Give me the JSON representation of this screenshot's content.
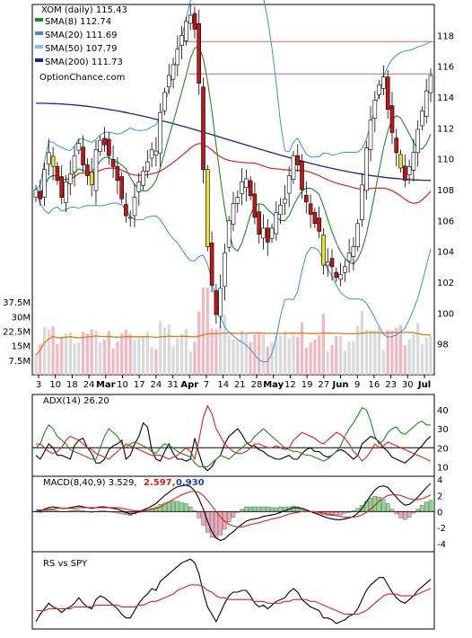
{
  "chart_data": [
    {
      "type": "candlestick",
      "symbol": "XOM",
      "title": "XOM (daily) 115.43",
      "source": "OptionChance.com",
      "ylim": [
        96,
        120
      ],
      "y_ticks": [
        98,
        100,
        102,
        104,
        106,
        108,
        110,
        112,
        114,
        116,
        118
      ],
      "x_ticks": [
        "3",
        "10",
        "18",
        "24",
        "Mar",
        "10",
        "17",
        "24",
        "31",
        "Apr",
        "7",
        "14",
        "21",
        "28",
        "May",
        "12",
        "19",
        "27",
        "Jun",
        "9",
        "16",
        "23",
        "30",
        "Jul"
      ],
      "legend": [
        {
          "label": "SMA(8) 112.74",
          "color": "#208a20"
        },
        {
          "label": "SMA(20) 111.69",
          "color": "#3a8fd8"
        },
        {
          "label": "SMA(50) 107.79",
          "color": "#7ec3f0"
        },
        {
          "label": "SMA(200) 111.73",
          "color": "#1a20a8"
        }
      ],
      "resistance_lines": [
        117.6,
        115.5
      ],
      "close": [
        108.0,
        107.4,
        109.3,
        110.4,
        109.5,
        108.6,
        107.5,
        108.5,
        109.0,
        110.2,
        111.0,
        109.6,
        108.9,
        108.3,
        110.6,
        111.2,
        110.9,
        110.2,
        109.5,
        108.6,
        107.4,
        106.3,
        106.2,
        107.5,
        108.5,
        109.2,
        109.8,
        110.6,
        110.5,
        113.0,
        114.3,
        115.4,
        116.1,
        117.1,
        118.0,
        118.9,
        119.3,
        118.4,
        114.9,
        109.3,
        104.3,
        101.8,
        99.9,
        101.6,
        103.9,
        106.0,
        107.1,
        107.5,
        108.5,
        108.7,
        107.6,
        106.2,
        105.1,
        105.5,
        104.6,
        105.5,
        106.5,
        107.0,
        107.4,
        108.9,
        110.2,
        109.6,
        108.0,
        107.2,
        106.4,
        105.8,
        105.3,
        103.1,
        103.3,
        103.0,
        102.3,
        102.5,
        103.0,
        103.9,
        104.3,
        105.8,
        108.3,
        110.7,
        112.5,
        113.8,
        114.8,
        115.3,
        113.2,
        111.7,
        110.4,
        109.4,
        108.6,
        109.5,
        110.4,
        111.9,
        113.1,
        114.4,
        115.4
      ],
      "volume_scale_M": [
        0,
        45
      ],
      "volume_ticks_M": [
        "37.5M",
        "30M",
        "22.5M",
        "15M",
        "7.5M"
      ]
    },
    {
      "type": "line",
      "title": "ADX(14) 26.20",
      "ylim": [
        5,
        48
      ],
      "y_ticks": [
        10,
        20,
        30,
        40
      ],
      "reference_line": 20,
      "series": [
        {
          "color": "#000000",
          "values": [
            16,
            14,
            18,
            22,
            20,
            16,
            16,
            15,
            14,
            21,
            24,
            25,
            20,
            17,
            12,
            12,
            14,
            19,
            21,
            22,
            24,
            14,
            16,
            22,
            26,
            33,
            31,
            19,
            14,
            13,
            18,
            22,
            17,
            14,
            14,
            13,
            14,
            25,
            17,
            10,
            8,
            10,
            14,
            16,
            22,
            26,
            28,
            30,
            27,
            23,
            21,
            21,
            19,
            18,
            16,
            15,
            14,
            14,
            15,
            16,
            14,
            14,
            17,
            19,
            20,
            18,
            18,
            16,
            15,
            16,
            18,
            19,
            18,
            16,
            14,
            16,
            22,
            24,
            26,
            25,
            23,
            20,
            18,
            15,
            14,
            13,
            12,
            14,
            16,
            19,
            21,
            24,
            26
          ]
        },
        {
          "color": "#208a20",
          "values": [
            20,
            22,
            28,
            32,
            30,
            26,
            24,
            22,
            19,
            18,
            17,
            16,
            15,
            14,
            14,
            20,
            26,
            30,
            28,
            26,
            22,
            20,
            22,
            23,
            22,
            21,
            20,
            18,
            17,
            20,
            22,
            21,
            20,
            18,
            17,
            16,
            15,
            12,
            10,
            10,
            10,
            12,
            14,
            16,
            15,
            14,
            16,
            18,
            20,
            22,
            23,
            26,
            28,
            30,
            28,
            26,
            24,
            22,
            20,
            19,
            18,
            18,
            17,
            16,
            16,
            15,
            14,
            13,
            14,
            16,
            18,
            21,
            26,
            30,
            33,
            37,
            41,
            40,
            34,
            26,
            22,
            24,
            28,
            30,
            31,
            28,
            27,
            29,
            31,
            33,
            34,
            32,
            32
          ]
        },
        {
          "color": "#dd2020",
          "values": [
            22,
            22,
            20,
            18,
            17,
            18,
            20,
            24,
            26,
            25,
            24,
            22,
            20,
            19,
            17,
            16,
            15,
            14,
            16,
            18,
            20,
            22,
            21,
            20,
            19,
            18,
            17,
            16,
            16,
            16,
            15,
            14,
            15,
            16,
            18,
            20,
            18,
            14,
            24,
            36,
            42,
            38,
            30,
            26,
            22,
            20,
            18,
            17,
            17,
            18,
            20,
            22,
            22,
            21,
            20,
            20,
            21,
            20,
            19,
            20,
            24,
            26,
            28,
            27,
            26,
            25,
            23,
            22,
            24,
            26,
            28,
            27,
            25,
            22,
            18,
            16,
            13,
            15,
            18,
            22,
            20,
            21,
            23,
            22,
            21,
            20,
            19,
            18,
            17,
            16,
            15,
            14,
            13
          ]
        }
      ]
    },
    {
      "type": "bar+line",
      "title": "MACD(8,40,9) 3.529,",
      "macd_value": "2.597,",
      "signal_value": "0.930",
      "ylim": [
        -5,
        4.4
      ],
      "y_ticks": [
        -4,
        -2,
        0,
        2,
        4
      ],
      "series": [
        {
          "color": "#000000",
          "values": [
            0.2,
            0.1,
            0.3,
            0.5,
            0.6,
            0.5,
            0.4,
            0.4,
            0.5,
            0.6,
            0.7,
            0.6,
            0.5,
            0.4,
            0.5,
            0.6,
            0.6,
            0.5,
            0.4,
            0.3,
            0.1,
            -0.1,
            -0.3,
            -0.2,
            0.0,
            0.2,
            0.4,
            0.7,
            1.0,
            1.5,
            2.0,
            2.4,
            2.8,
            3.1,
            3.2,
            3.3,
            3.1,
            2.6,
            1.6,
            0.3,
            -1.2,
            -2.5,
            -3.3,
            -3.6,
            -3.4,
            -2.9,
            -2.5,
            -2.0,
            -1.6,
            -1.2,
            -1.0,
            -0.9,
            -0.8,
            -0.6,
            -0.5,
            -0.4,
            -0.3,
            -0.1,
            0.1,
            0.3,
            0.5,
            0.5,
            0.4,
            0.2,
            0.0,
            -0.2,
            -0.4,
            -0.6,
            -0.8,
            -0.9,
            -1.0,
            -1.0,
            -0.9,
            -0.8,
            -0.6,
            -0.2,
            0.4,
            1.2,
            2.0,
            2.7,
            3.1,
            3.2,
            3.0,
            2.4,
            1.8,
            1.2,
            0.8,
            0.9,
            1.3,
            1.8,
            2.4,
            3.0,
            3.5
          ]
        },
        {
          "color": "#dd2020",
          "values": [
            0.2,
            0.2,
            0.2,
            0.3,
            0.3,
            0.4,
            0.4,
            0.4,
            0.4,
            0.4,
            0.5,
            0.5,
            0.5,
            0.5,
            0.5,
            0.5,
            0.5,
            0.5,
            0.5,
            0.5,
            0.4,
            0.3,
            0.2,
            0.1,
            0.1,
            0.1,
            0.2,
            0.3,
            0.4,
            0.6,
            0.9,
            1.2,
            1.5,
            1.8,
            2.1,
            2.3,
            2.5,
            2.5,
            2.4,
            2.0,
            1.4,
            0.7,
            0.0,
            -0.7,
            -1.2,
            -1.6,
            -1.8,
            -1.9,
            -1.9,
            -1.8,
            -1.6,
            -1.5,
            -1.4,
            -1.2,
            -1.1,
            -0.9,
            -0.8,
            -0.7,
            -0.5,
            -0.3,
            -0.2,
            -0.1,
            0.0,
            0.0,
            0.0,
            0.0,
            -0.1,
            -0.2,
            -0.3,
            -0.4,
            -0.5,
            -0.6,
            -0.7,
            -0.7,
            -0.7,
            -0.6,
            -0.4,
            -0.1,
            0.3,
            0.8,
            1.3,
            1.7,
            2.0,
            2.1,
            2.1,
            2.0,
            1.8,
            1.6,
            1.5,
            1.5,
            1.6,
            1.8,
            2.1
          ]
        }
      ]
    },
    {
      "type": "line",
      "title": "RS vs SPY",
      "series": [
        {
          "color": "#000000",
          "values": [
            40,
            44,
            47,
            50,
            48,
            47,
            45,
            47,
            48,
            50,
            53,
            50,
            48,
            47,
            52,
            54,
            53,
            51,
            49,
            47,
            44,
            42,
            42,
            46,
            50,
            53,
            55,
            58,
            57,
            62,
            64,
            66,
            68,
            70,
            72,
            73,
            74,
            72,
            66,
            56,
            48,
            44,
            40,
            45,
            50,
            54,
            56,
            56,
            57,
            57,
            54,
            50,
            48,
            49,
            47,
            49,
            51,
            52,
            53,
            56,
            58,
            56,
            52,
            50,
            48,
            47,
            46,
            42,
            42,
            41,
            39,
            40,
            41,
            43,
            44,
            47,
            52,
            57,
            60,
            62,
            64,
            64,
            60,
            56,
            53,
            51,
            50,
            52,
            54,
            57,
            59,
            61,
            63
          ]
        },
        {
          "color": "#dd2020",
          "values": [
            46,
            46,
            46,
            47,
            47,
            47,
            47,
            47,
            47,
            48,
            48,
            48,
            48,
            48,
            49,
            49,
            49,
            49,
            49,
            49,
            48,
            48,
            48,
            48,
            49,
            49,
            50,
            51,
            51,
            52,
            53,
            54,
            55,
            57,
            58,
            59,
            60,
            60,
            60,
            59,
            57,
            56,
            54,
            53,
            53,
            52,
            52,
            52,
            52,
            52,
            52,
            51,
            51,
            51,
            50,
            50,
            50,
            50,
            51,
            51,
            52,
            52,
            52,
            52,
            51,
            51,
            50,
            49,
            48,
            47,
            46,
            45,
            44,
            44,
            44,
            44,
            45,
            46,
            48,
            50,
            52,
            54,
            55,
            55,
            55,
            54,
            54,
            54,
            54,
            55,
            56,
            57,
            58
          ]
        }
      ]
    }
  ]
}
